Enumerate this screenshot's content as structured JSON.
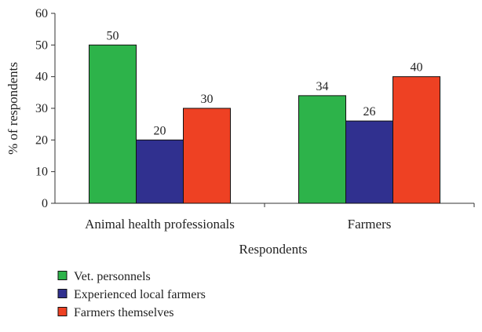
{
  "chart_data": {
    "type": "bar",
    "title": "",
    "xlabel": "Respondents",
    "ylabel": "% of respondents",
    "ylim": [
      0,
      60
    ],
    "yticks": [
      0,
      10,
      20,
      30,
      40,
      50,
      60
    ],
    "categories": [
      "Animal health professionals",
      "Farmers"
    ],
    "series": [
      {
        "name": "Vet. personnels",
        "values": [
          50,
          34
        ],
        "color": "#2db34a"
      },
      {
        "name": "Experienced local farmers",
        "values": [
          20,
          26
        ],
        "color": "#30308f"
      },
      {
        "name": "Farmers themselves",
        "values": [
          30,
          40
        ],
        "color": "#ee4123"
      }
    ],
    "data_labels": true,
    "grid": false,
    "legend_position": "bottom-left"
  }
}
